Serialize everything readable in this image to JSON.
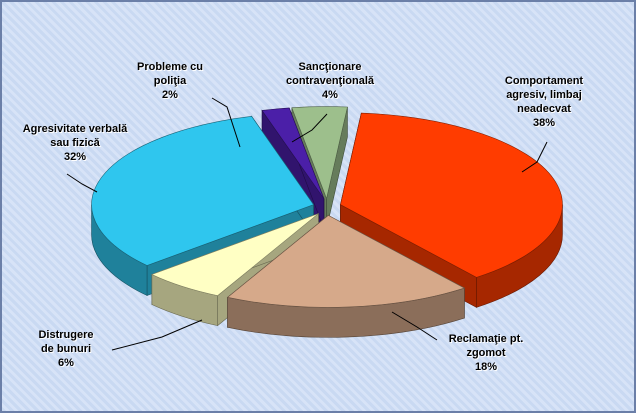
{
  "chart_data": {
    "type": "pie",
    "categories": [
      "Comportament agresiv, limbaj neadecvat",
      "Reclamaţie pt. zgomot",
      "Distrugere de bunuri",
      "Agresivitate verbală sau fizică",
      "Probleme cu poliţia",
      "Sancţionare contravenţională"
    ],
    "values": [
      38,
      18,
      6,
      32,
      2,
      4
    ],
    "value_labels": [
      "38%",
      "18%",
      "6%",
      "32%",
      "2%",
      "4%"
    ],
    "colors": [
      "#ff3c00",
      "#d6a98a",
      "#ffffc4",
      "#2fc6ee",
      "#4b1fa8",
      "#9dbf8c"
    ]
  }
}
